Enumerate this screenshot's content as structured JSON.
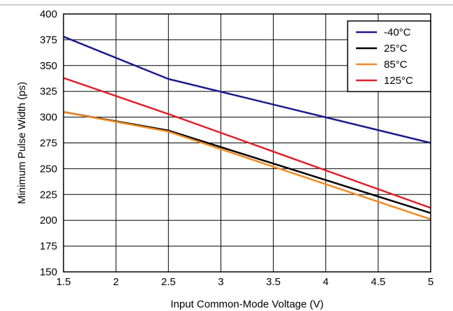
{
  "chart_data": {
    "type": "line",
    "title": "",
    "xlabel": "Input Common-Mode Voltage (V)",
    "ylabel": "Minimum Pulse Width (ps)",
    "xlim": [
      1.5,
      5
    ],
    "ylim": [
      150,
      400
    ],
    "xticks": [
      "1.5",
      "2",
      "2.5",
      "3",
      "3.5",
      "4",
      "4.5",
      "5"
    ],
    "yticks": [
      "150",
      "175",
      "200",
      "225",
      "250",
      "275",
      "300",
      "325",
      "350",
      "375",
      "400"
    ],
    "grid": true,
    "legend_position": "top-right",
    "series": [
      {
        "name": "-40°C",
        "color": "#1a1a8c",
        "x": [
          1.5,
          2.5,
          5
        ],
        "y": [
          378,
          337,
          275
        ]
      },
      {
        "name": "25°C",
        "color": "#000000",
        "x": [
          1.5,
          2.5,
          5
        ],
        "y": [
          305,
          287,
          207
        ]
      },
      {
        "name": "85°C",
        "color": "#f08a24",
        "x": [
          1.5,
          2.5,
          5
        ],
        "y": [
          305,
          286,
          201
        ]
      },
      {
        "name": "125°C",
        "color": "#e0202a",
        "x": [
          1.5,
          2.5,
          5
        ],
        "y": [
          338,
          303,
          212
        ]
      }
    ]
  }
}
